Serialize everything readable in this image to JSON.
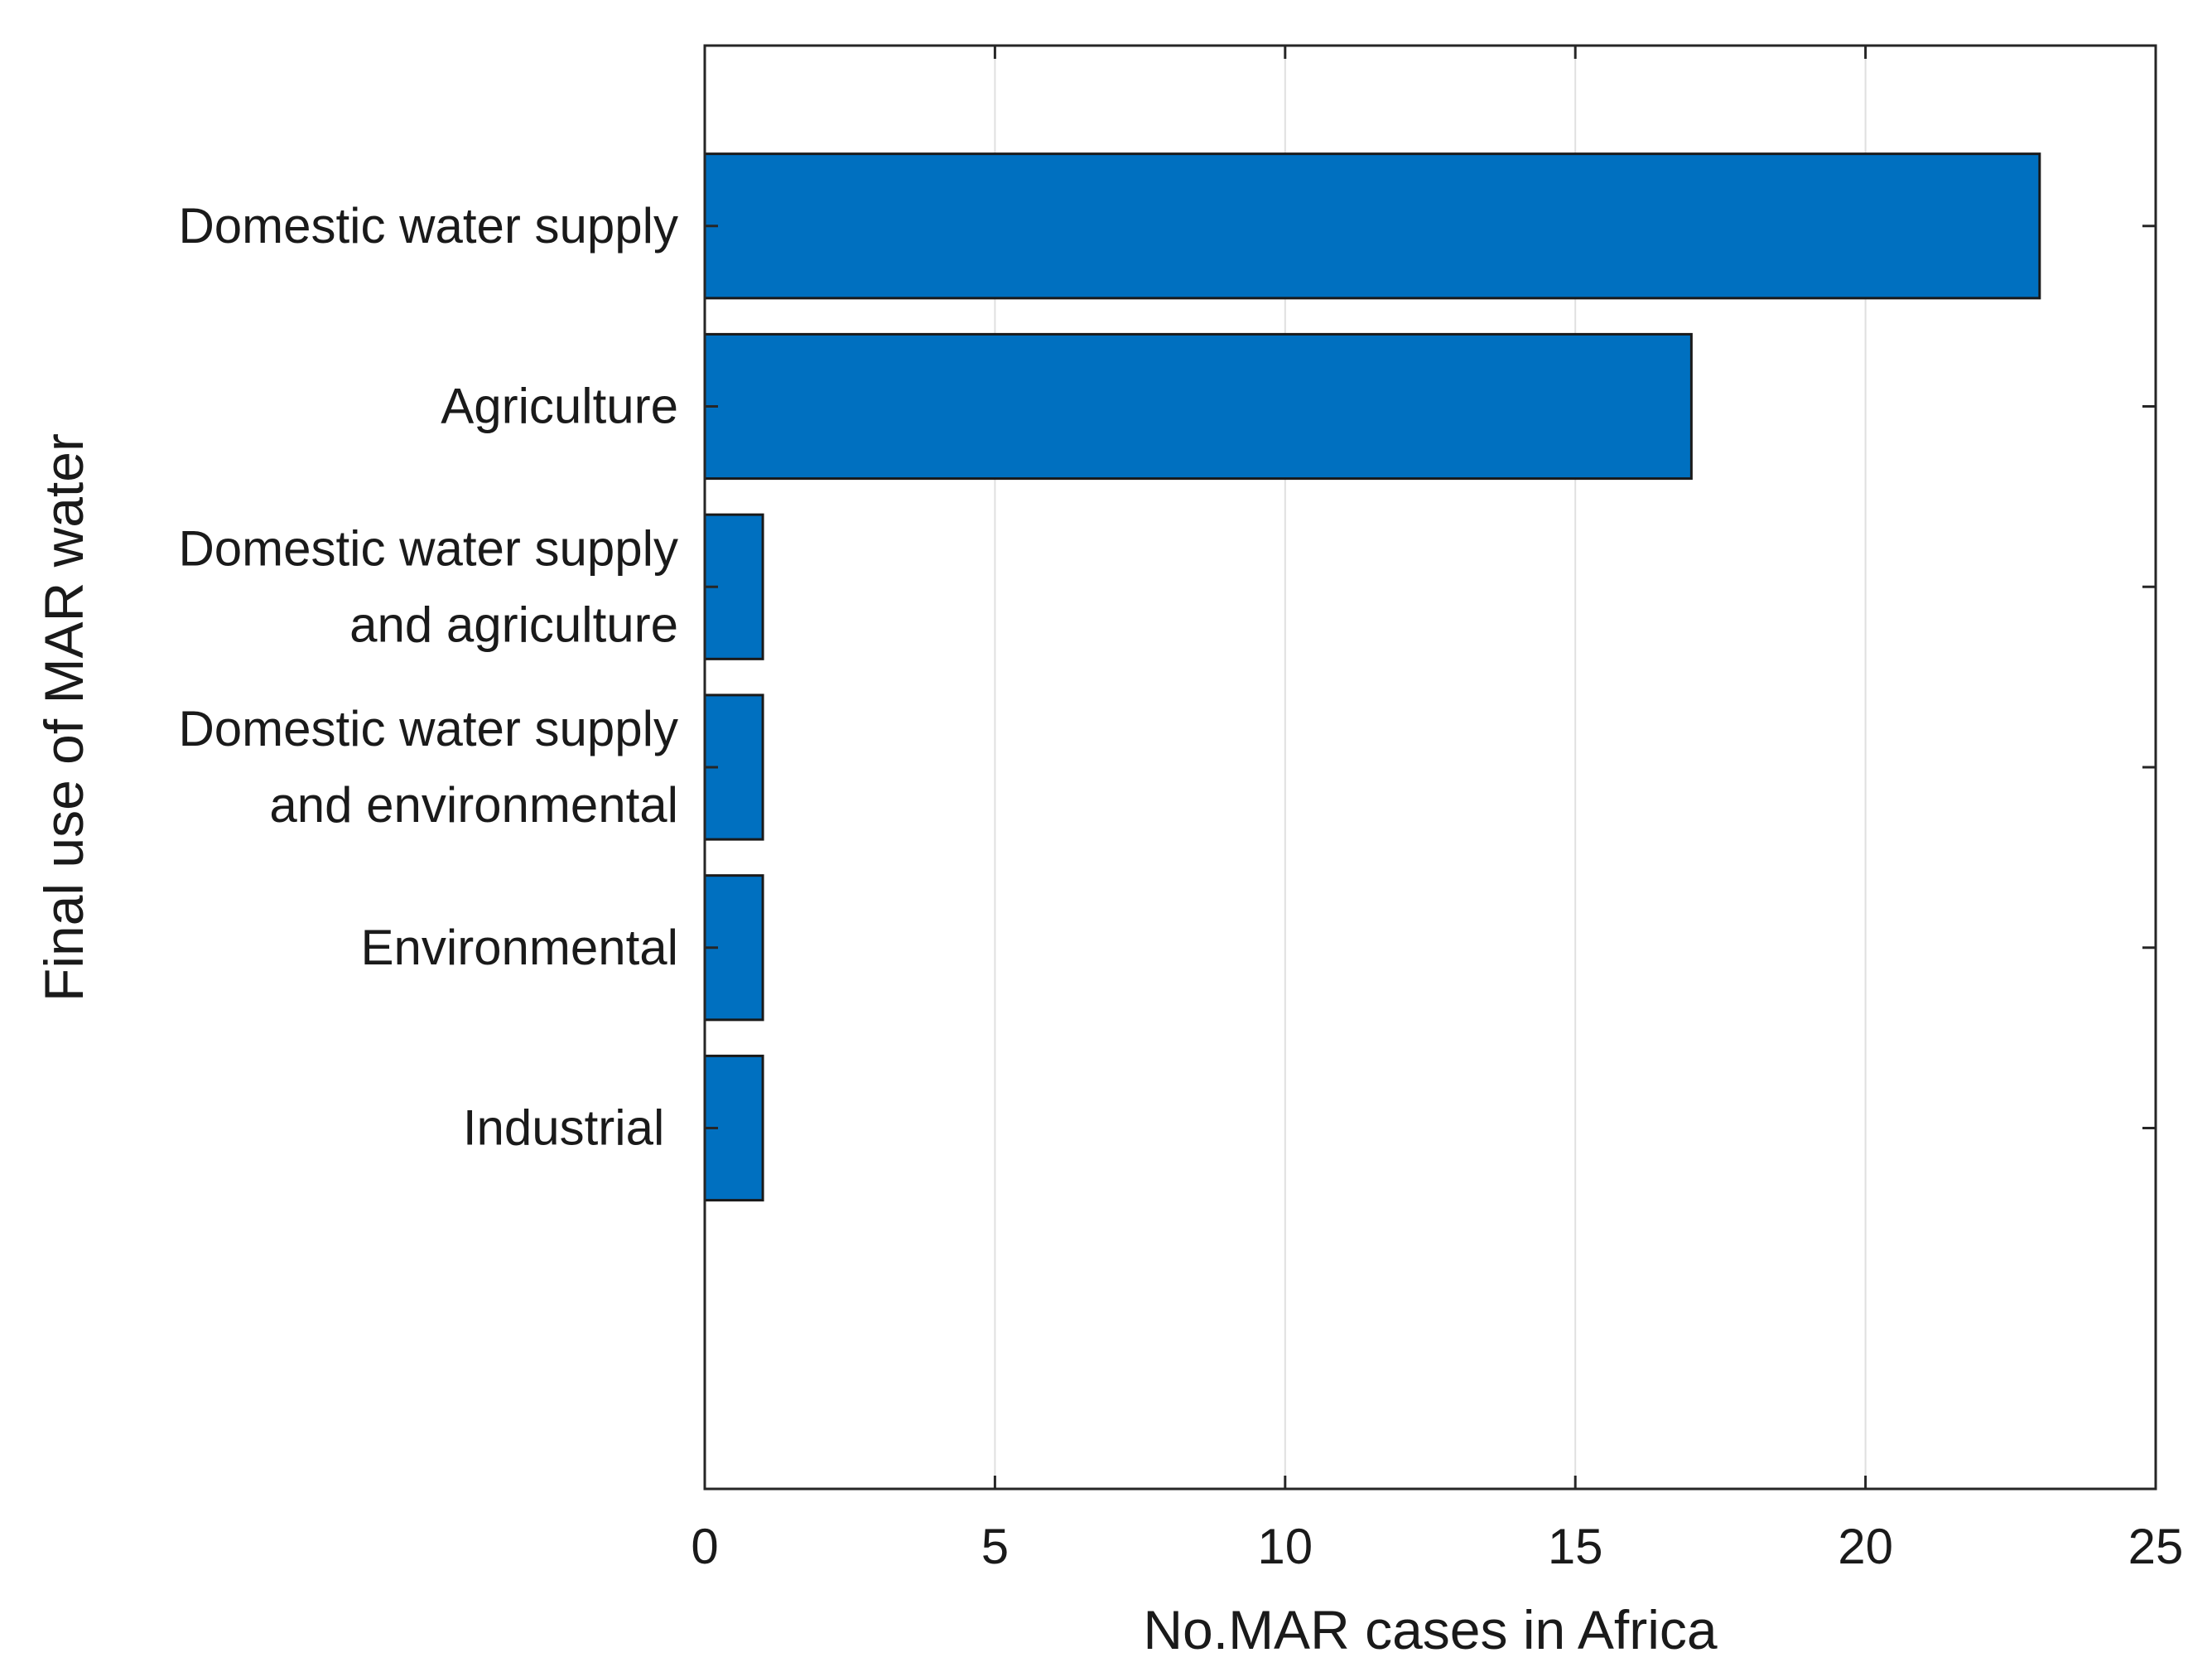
{
  "chart_data": {
    "type": "bar",
    "orientation": "horizontal",
    "categories": [
      [
        "Domestic water supply"
      ],
      [
        "Agriculture"
      ],
      [
        "Domestic water supply",
        " and agriculture"
      ],
      [
        "Domestic water supply",
        " and environmental"
      ],
      [
        "Environmental"
      ],
      [
        "Industrial "
      ]
    ],
    "values": [
      23,
      17,
      1,
      1,
      1,
      1
    ],
    "xlabel": "No.MAR cases in Africa",
    "ylabel": "Final use of MAR water",
    "xlim": [
      0,
      25
    ],
    "xticks": [
      0,
      5,
      10,
      15,
      20,
      25
    ],
    "grid": "vertical",
    "bar_color": "#0070C0",
    "edge_color": "#1a1a1a",
    "grid_color": "#e0e0e0"
  }
}
